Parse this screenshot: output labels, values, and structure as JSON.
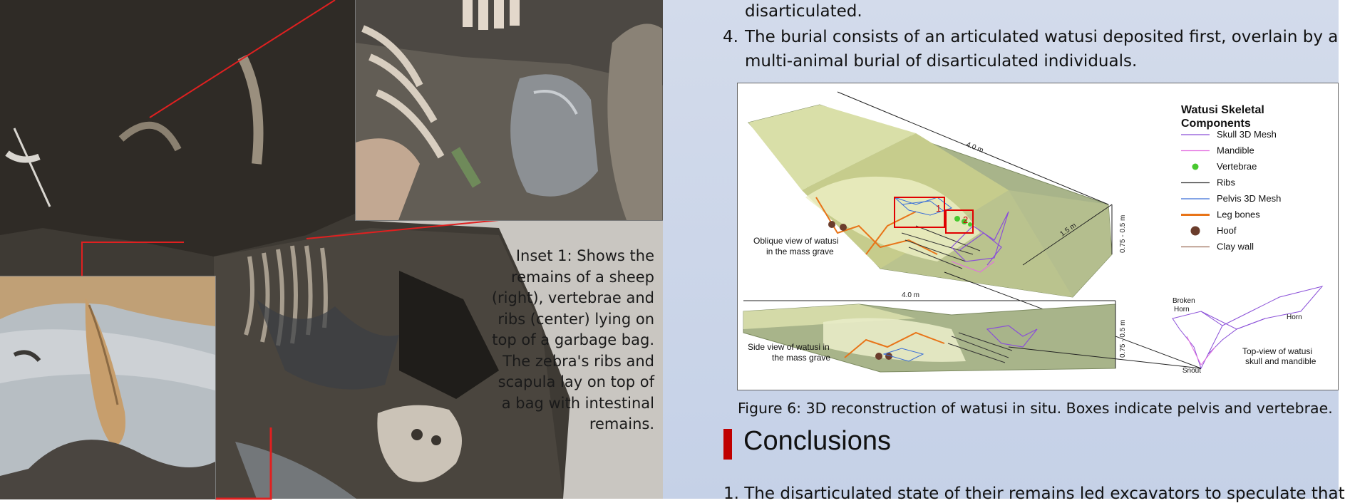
{
  "photo_panel": {
    "inset_caption": "Inset 1: Shows the remains of a sheep (right), vertebrae and ribs (center) lying on top of a garbage bag. The zebra's ribs and scapula lay on top of a bag with intestinal remains."
  },
  "text": {
    "line_top": "disarticulated.",
    "item4_number": "4.",
    "item4_line1": "The burial consists of an articulated  watusi deposited first, overlain by a",
    "item4_line2": "multi-animal  burial of disarticulated individuals."
  },
  "figure": {
    "legend_title_1": "Watusi Skeletal",
    "legend_title_2": "Components",
    "legend": [
      {
        "label": "Skull 3D Mesh",
        "color": "#8a4fd8",
        "kind": "line"
      },
      {
        "label": "Mandible",
        "color": "#e36ee0",
        "kind": "line"
      },
      {
        "label": "Vertebrae",
        "color": "#48c82f",
        "kind": "dot"
      },
      {
        "label": "Ribs",
        "color": "#333333",
        "kind": "line"
      },
      {
        "label": "Pelvis 3D Mesh",
        "color": "#3a6ed8",
        "kind": "line"
      },
      {
        "label": "Leg bones",
        "color": "#e87418",
        "kind": "thick"
      },
      {
        "label": "Hoof",
        "color": "#6b3d2c",
        "kind": "circle"
      },
      {
        "label": "Clay wall",
        "color": "#9b6b55",
        "kind": "line"
      }
    ],
    "oblique_label_1": "Oblique view of watusi",
    "oblique_label_2": "in the mass grave",
    "side_label_1": "Side view of watusi in",
    "side_label_2": "the mass grave",
    "dim_length": "4.0 m",
    "dim_side_length": "4.0 m",
    "dim_width": "1.5 m",
    "dim_depth": "0.75 - 0.5 m",
    "box1_label": "1",
    "box2_label": "2",
    "broken_horn_1": "Broken",
    "broken_horn_2": "Horn",
    "horn_label": "Horn",
    "snout_label": "Snout",
    "top_view_1": "Top-view of watusi",
    "top_view_2": "skull and mandible"
  },
  "figure_caption": "Figure 6: 3D reconstruction of watusi in situ. Boxes indicate pelvis and vertebrae.",
  "section_title": "Conclusions",
  "conclusion_item_1": "1.  The disarticulated  state of their remains led excavators to speculate that"
}
